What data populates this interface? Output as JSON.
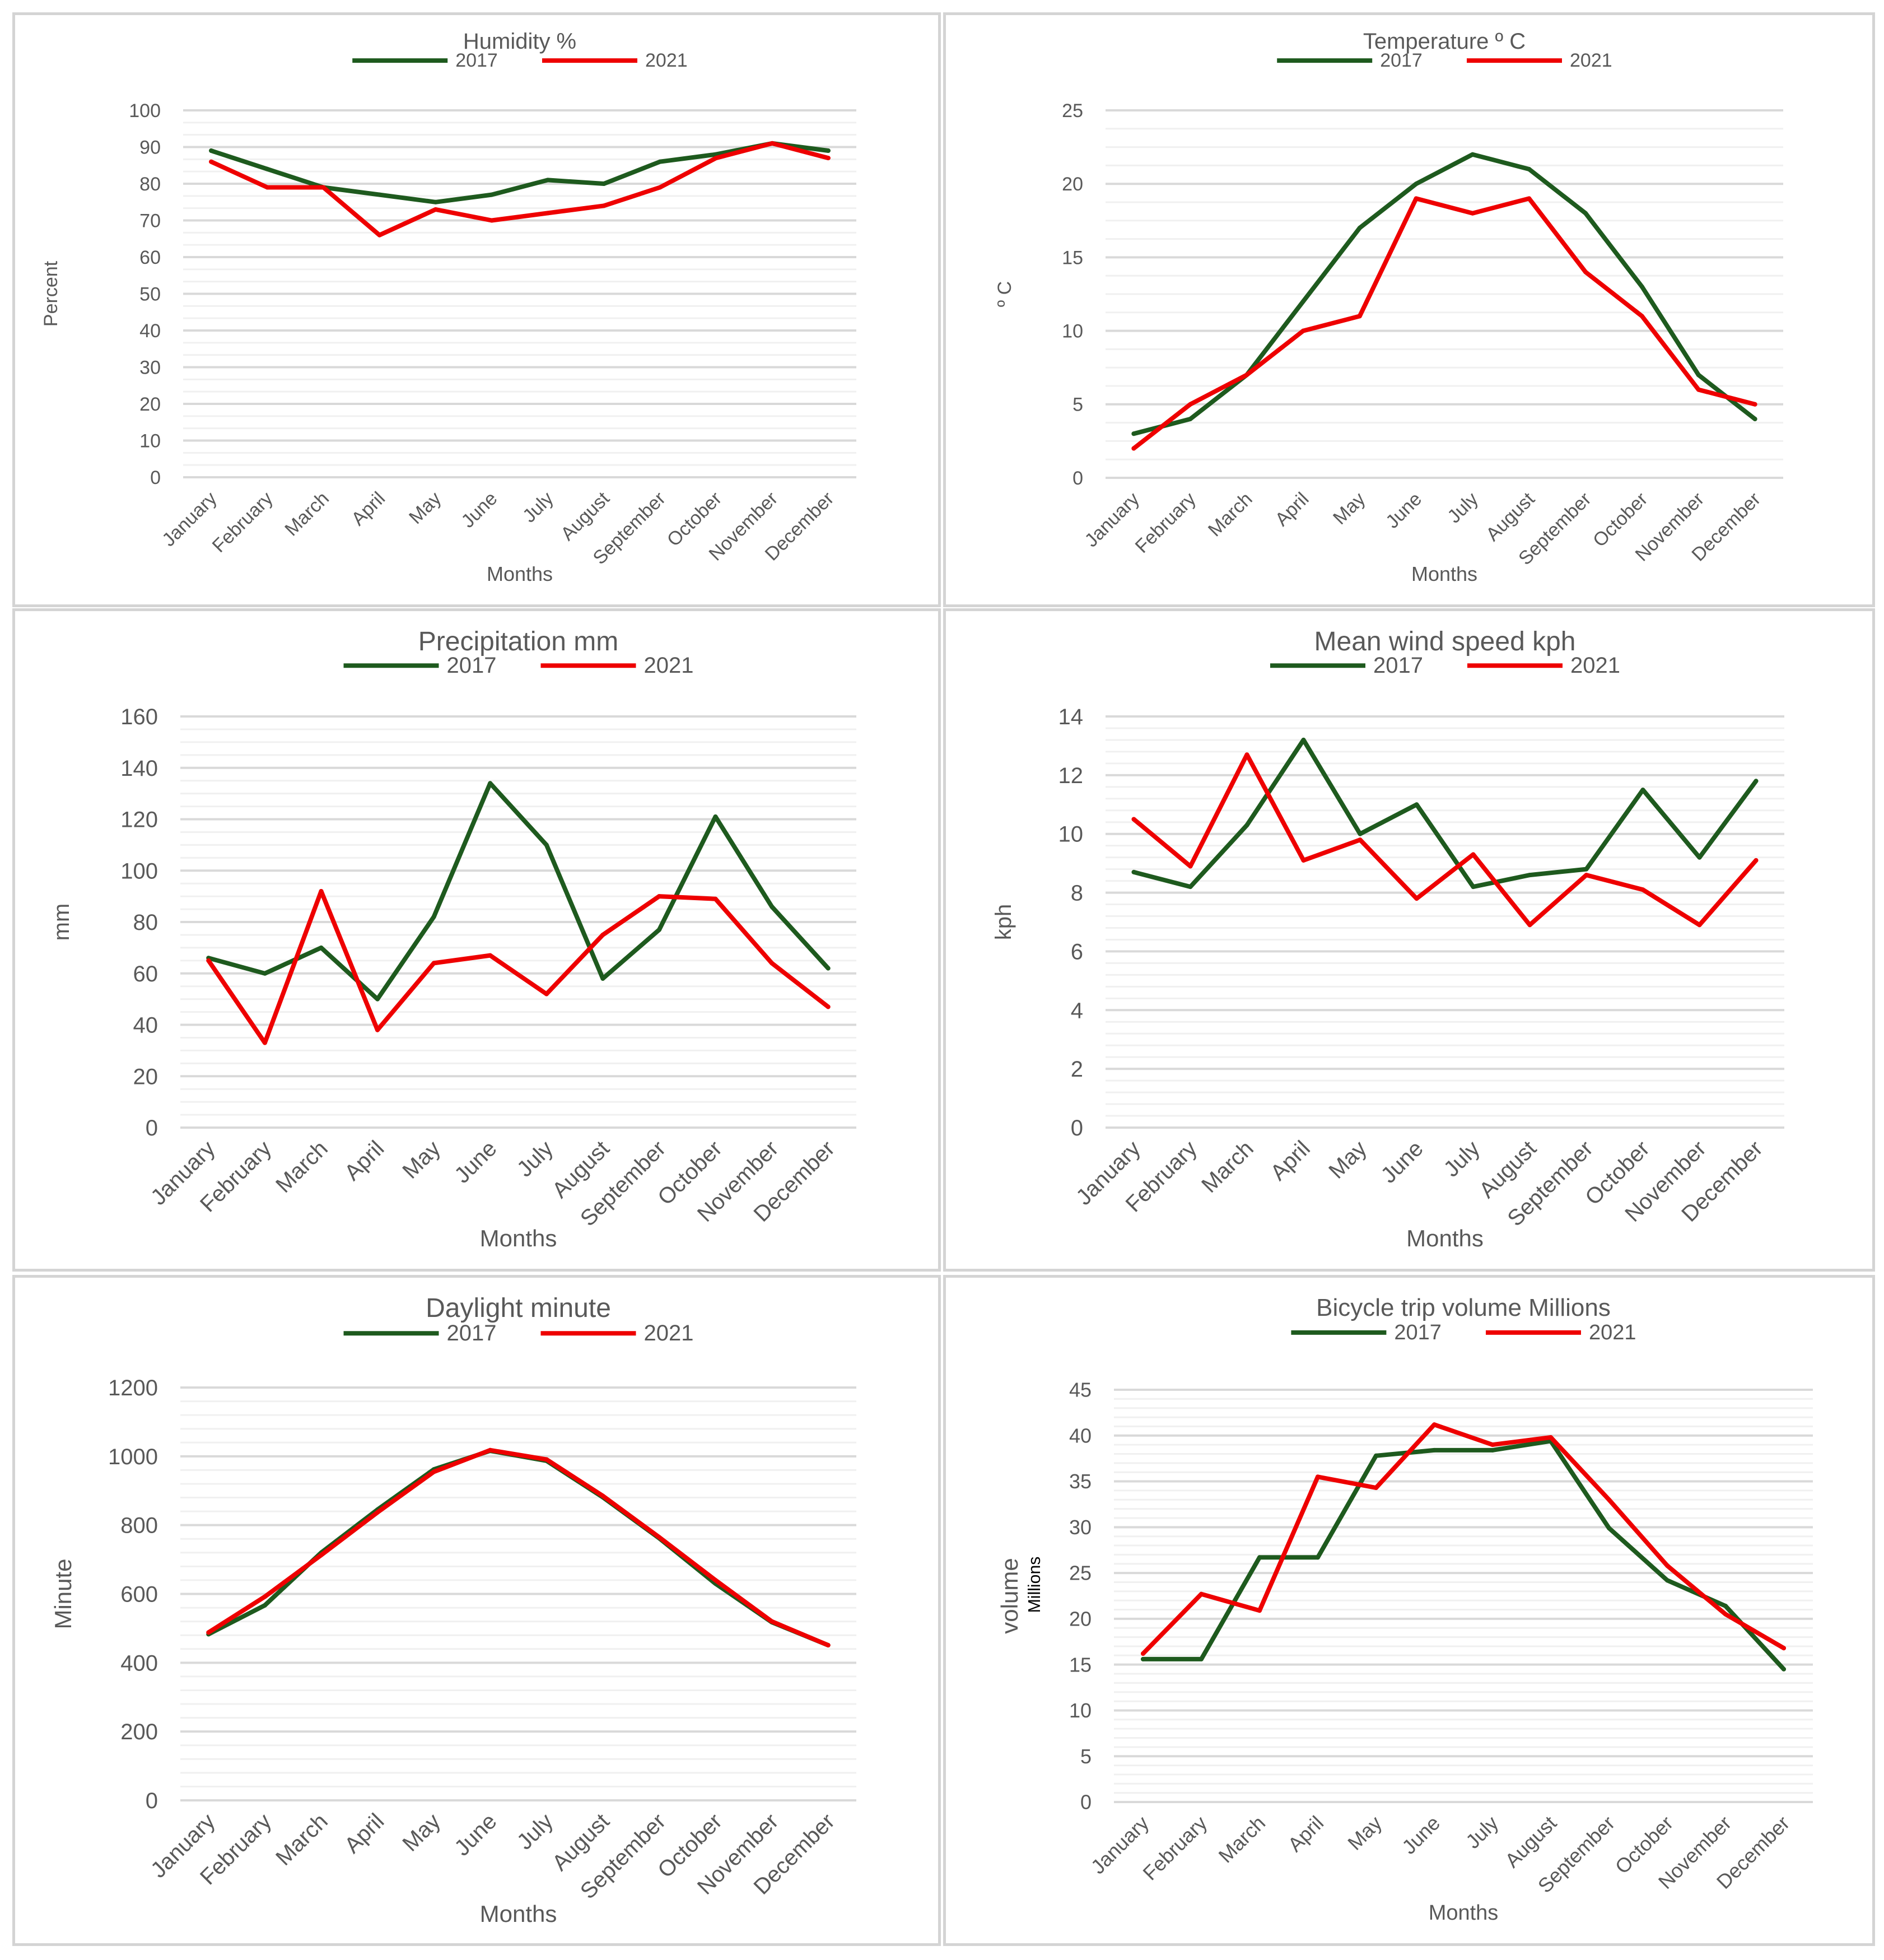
{
  "colors": {
    "series_2017": "#1e5a1e",
    "series_2021": "#ee0000",
    "axis_text": "#595959",
    "grid_major": "#d9d9d9",
    "grid_minor": "#f0f0f0"
  },
  "chart_data": [
    {
      "type": "line",
      "title": "Humidity %",
      "xlabel": "Months",
      "ylabel": "Percent",
      "ylim": [
        0,
        100
      ],
      "ystep": 10,
      "minor_per_major": 2,
      "categories": [
        "January",
        "February",
        "March",
        "April",
        "May",
        "June",
        "July",
        "August",
        "September",
        "October",
        "November",
        "December"
      ],
      "series": [
        {
          "name": "2017",
          "values": [
            89,
            84,
            79,
            77,
            75,
            77,
            81,
            80,
            86,
            88,
            91,
            89
          ]
        },
        {
          "name": "2021",
          "values": [
            86,
            79,
            79,
            66,
            73,
            70,
            72,
            74,
            79,
            87,
            91,
            87
          ]
        }
      ]
    },
    {
      "type": "line",
      "title": "Temperature º C",
      "xlabel": "Months",
      "ylabel": "º C",
      "ylim": [
        0,
        25
      ],
      "ystep": 5,
      "minor_per_major": 3,
      "categories": [
        "January",
        "February",
        "March",
        "April",
        "May",
        "June",
        "July",
        "August",
        "September",
        "October",
        "November",
        "December"
      ],
      "series": [
        {
          "name": "2017",
          "values": [
            3,
            4,
            7,
            12,
            17,
            20,
            22,
            21,
            18,
            13,
            7,
            4
          ]
        },
        {
          "name": "2021",
          "values": [
            2,
            5,
            7,
            10,
            11,
            19,
            18,
            19,
            14,
            11,
            6,
            5
          ]
        }
      ]
    },
    {
      "type": "line",
      "title": "Precipitation  mm",
      "xlabel": "Months",
      "ylabel": "mm",
      "ylim": [
        0,
        160
      ],
      "ystep": 20,
      "minor_per_major": 3,
      "categories": [
        "January",
        "February",
        "March",
        "April",
        "May",
        "June",
        "July",
        "August",
        "September",
        "October",
        "November",
        "December"
      ],
      "series": [
        {
          "name": "2017",
          "values": [
            66,
            60,
            70,
            50,
            82,
            134,
            110,
            58,
            77,
            121,
            86,
            62
          ]
        },
        {
          "name": "2021",
          "values": [
            65,
            33,
            92,
            38,
            64,
            67,
            52,
            75,
            90,
            89,
            64,
            47
          ]
        }
      ]
    },
    {
      "type": "line",
      "title": "Mean wind speed  kph",
      "xlabel": "Months",
      "ylabel": "kph",
      "ylim": [
        0,
        14
      ],
      "ystep": 2,
      "minor_per_major": 4,
      "categories": [
        "January",
        "February",
        "March",
        "April",
        "May",
        "June",
        "July",
        "August",
        "September",
        "October",
        "November",
        "December"
      ],
      "series": [
        {
          "name": "2017",
          "values": [
            8.7,
            8.2,
            10.3,
            13.2,
            10.0,
            11.0,
            8.2,
            8.6,
            8.8,
            11.5,
            9.2,
            11.8
          ]
        },
        {
          "name": "2021",
          "values": [
            10.5,
            8.9,
            12.7,
            9.1,
            9.8,
            7.8,
            9.3,
            6.9,
            8.6,
            8.1,
            6.9,
            9.1
          ]
        }
      ]
    },
    {
      "type": "line",
      "title": "Daylight minute",
      "xlabel": "Months",
      "ylabel": "Minute",
      "ylim": [
        0,
        1200
      ],
      "ystep": 200,
      "minor_per_major": 4,
      "categories": [
        "January",
        "February",
        "March",
        "April",
        "May",
        "June",
        "July",
        "August",
        "September",
        "October",
        "November",
        "December"
      ],
      "series": [
        {
          "name": "2017",
          "values": [
            483,
            567,
            720,
            845,
            962,
            1016,
            987,
            881,
            762,
            630,
            518,
            451
          ]
        },
        {
          "name": "2021",
          "values": [
            488,
            592,
            713,
            837,
            955,
            1018,
            991,
            885,
            765,
            640,
            520,
            451
          ]
        }
      ]
    },
    {
      "type": "line",
      "title": "Bicycle trip volume Millions",
      "xlabel": "Months",
      "ylabel": "volume",
      "ylabel_sub": "Millions",
      "ylim": [
        0,
        45
      ],
      "ystep": 5,
      "minor_per_major": 4,
      "categories": [
        "January",
        "February",
        "March",
        "April",
        "May",
        "June",
        "July",
        "August",
        "September",
        "October",
        "November",
        "December"
      ],
      "series": [
        {
          "name": "2017",
          "values": [
            15.6,
            15.6,
            26.7,
            26.7,
            37.8,
            38.4,
            38.4,
            39.4,
            29.9,
            24.2,
            21.4,
            14.5
          ]
        },
        {
          "name": "2021",
          "values": [
            16.2,
            22.7,
            20.9,
            35.5,
            34.3,
            41.2,
            39.0,
            39.8,
            33.0,
            25.8,
            20.5,
            16.8
          ]
        }
      ]
    }
  ]
}
